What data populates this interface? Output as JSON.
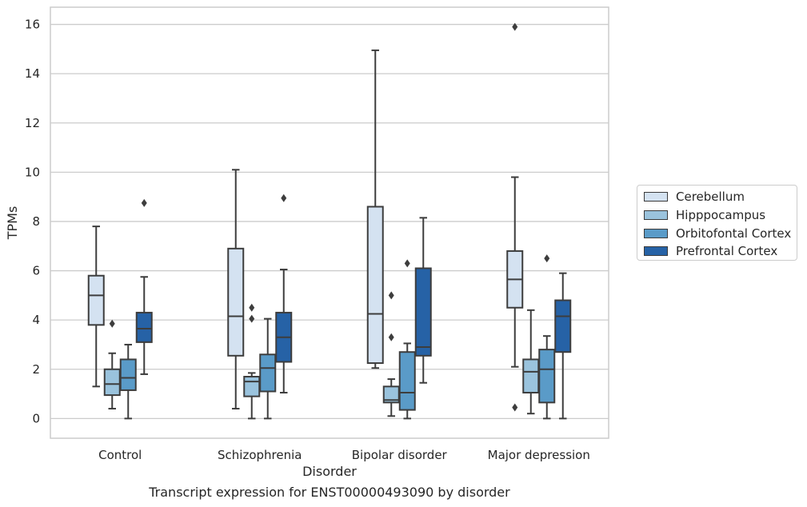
{
  "chart_data": {
    "type": "boxplot",
    "xlabel": "Disorder",
    "ylabel": "TPMs",
    "caption": "Transcript expression for ENST00000493090 by disorder",
    "ylim": [
      -0.8,
      16.7
    ],
    "yticks": [
      0,
      2,
      4,
      6,
      8,
      10,
      12,
      14,
      16
    ],
    "grid": "horizontal",
    "legend_position": "right",
    "categories": [
      "Control",
      "Schizophrenia",
      "Bipolar disorder",
      "Major depression"
    ],
    "series": [
      {
        "name": "Cerebellum",
        "color": "#d4e2f1",
        "boxes": [
          {
            "whisker_low": 1.3,
            "q1": 3.8,
            "median": 5.0,
            "q3": 5.8,
            "whisker_high": 7.8,
            "outliers": []
          },
          {
            "whisker_low": 0.4,
            "q1": 2.55,
            "median": 4.15,
            "q3": 6.9,
            "whisker_high": 10.1,
            "outliers": []
          },
          {
            "whisker_low": 2.05,
            "q1": 2.25,
            "median": 4.25,
            "q3": 8.6,
            "whisker_high": 14.95,
            "outliers": []
          },
          {
            "whisker_low": 2.1,
            "q1": 4.5,
            "median": 5.65,
            "q3": 6.8,
            "whisker_high": 9.8,
            "outliers": [
              0.45,
              15.9
            ]
          }
        ]
      },
      {
        "name": "Hipppocampus",
        "color": "#9ac3dd",
        "boxes": [
          {
            "whisker_low": 0.4,
            "q1": 0.95,
            "median": 1.4,
            "q3": 2.0,
            "whisker_high": 2.65,
            "outliers": [
              3.85
            ]
          },
          {
            "whisker_low": 0.0,
            "q1": 0.9,
            "median": 1.5,
            "q3": 1.7,
            "whisker_high": 1.85,
            "outliers": [
              4.05,
              4.5
            ]
          },
          {
            "whisker_low": 0.1,
            "q1": 0.65,
            "median": 0.75,
            "q3": 1.3,
            "whisker_high": 1.6,
            "outliers": [
              3.3,
              5.0
            ]
          },
          {
            "whisker_low": 0.2,
            "q1": 1.05,
            "median": 1.9,
            "q3": 2.4,
            "whisker_high": 4.4,
            "outliers": []
          }
        ]
      },
      {
        "name": "Orbitofontal Cortex",
        "color": "#5a9bc8",
        "boxes": [
          {
            "whisker_low": 0.0,
            "q1": 1.15,
            "median": 1.65,
            "q3": 2.4,
            "whisker_high": 3.0,
            "outliers": []
          },
          {
            "whisker_low": 0.0,
            "q1": 1.1,
            "median": 2.05,
            "q3": 2.6,
            "whisker_high": 4.05,
            "outliers": []
          },
          {
            "whisker_low": 0.0,
            "q1": 0.35,
            "median": 1.05,
            "q3": 2.7,
            "whisker_high": 3.05,
            "outliers": [
              6.3
            ]
          },
          {
            "whisker_low": 0.0,
            "q1": 0.65,
            "median": 2.0,
            "q3": 2.8,
            "whisker_high": 3.35,
            "outliers": [
              6.5
            ]
          }
        ]
      },
      {
        "name": "Prefrontal Cortex",
        "color": "#2662a6",
        "boxes": [
          {
            "whisker_low": 1.8,
            "q1": 3.1,
            "median": 3.65,
            "q3": 4.3,
            "whisker_high": 5.75,
            "outliers": [
              8.75
            ]
          },
          {
            "whisker_low": 1.05,
            "q1": 2.3,
            "median": 3.3,
            "q3": 4.3,
            "whisker_high": 6.05,
            "outliers": [
              8.95
            ]
          },
          {
            "whisker_low": 1.45,
            "q1": 2.55,
            "median": 2.9,
            "q3": 6.1,
            "whisker_high": 8.15,
            "outliers": []
          },
          {
            "whisker_low": 0.0,
            "q1": 2.7,
            "median": 4.15,
            "q3": 4.8,
            "whisker_high": 5.9,
            "outliers": []
          }
        ]
      }
    ]
  }
}
